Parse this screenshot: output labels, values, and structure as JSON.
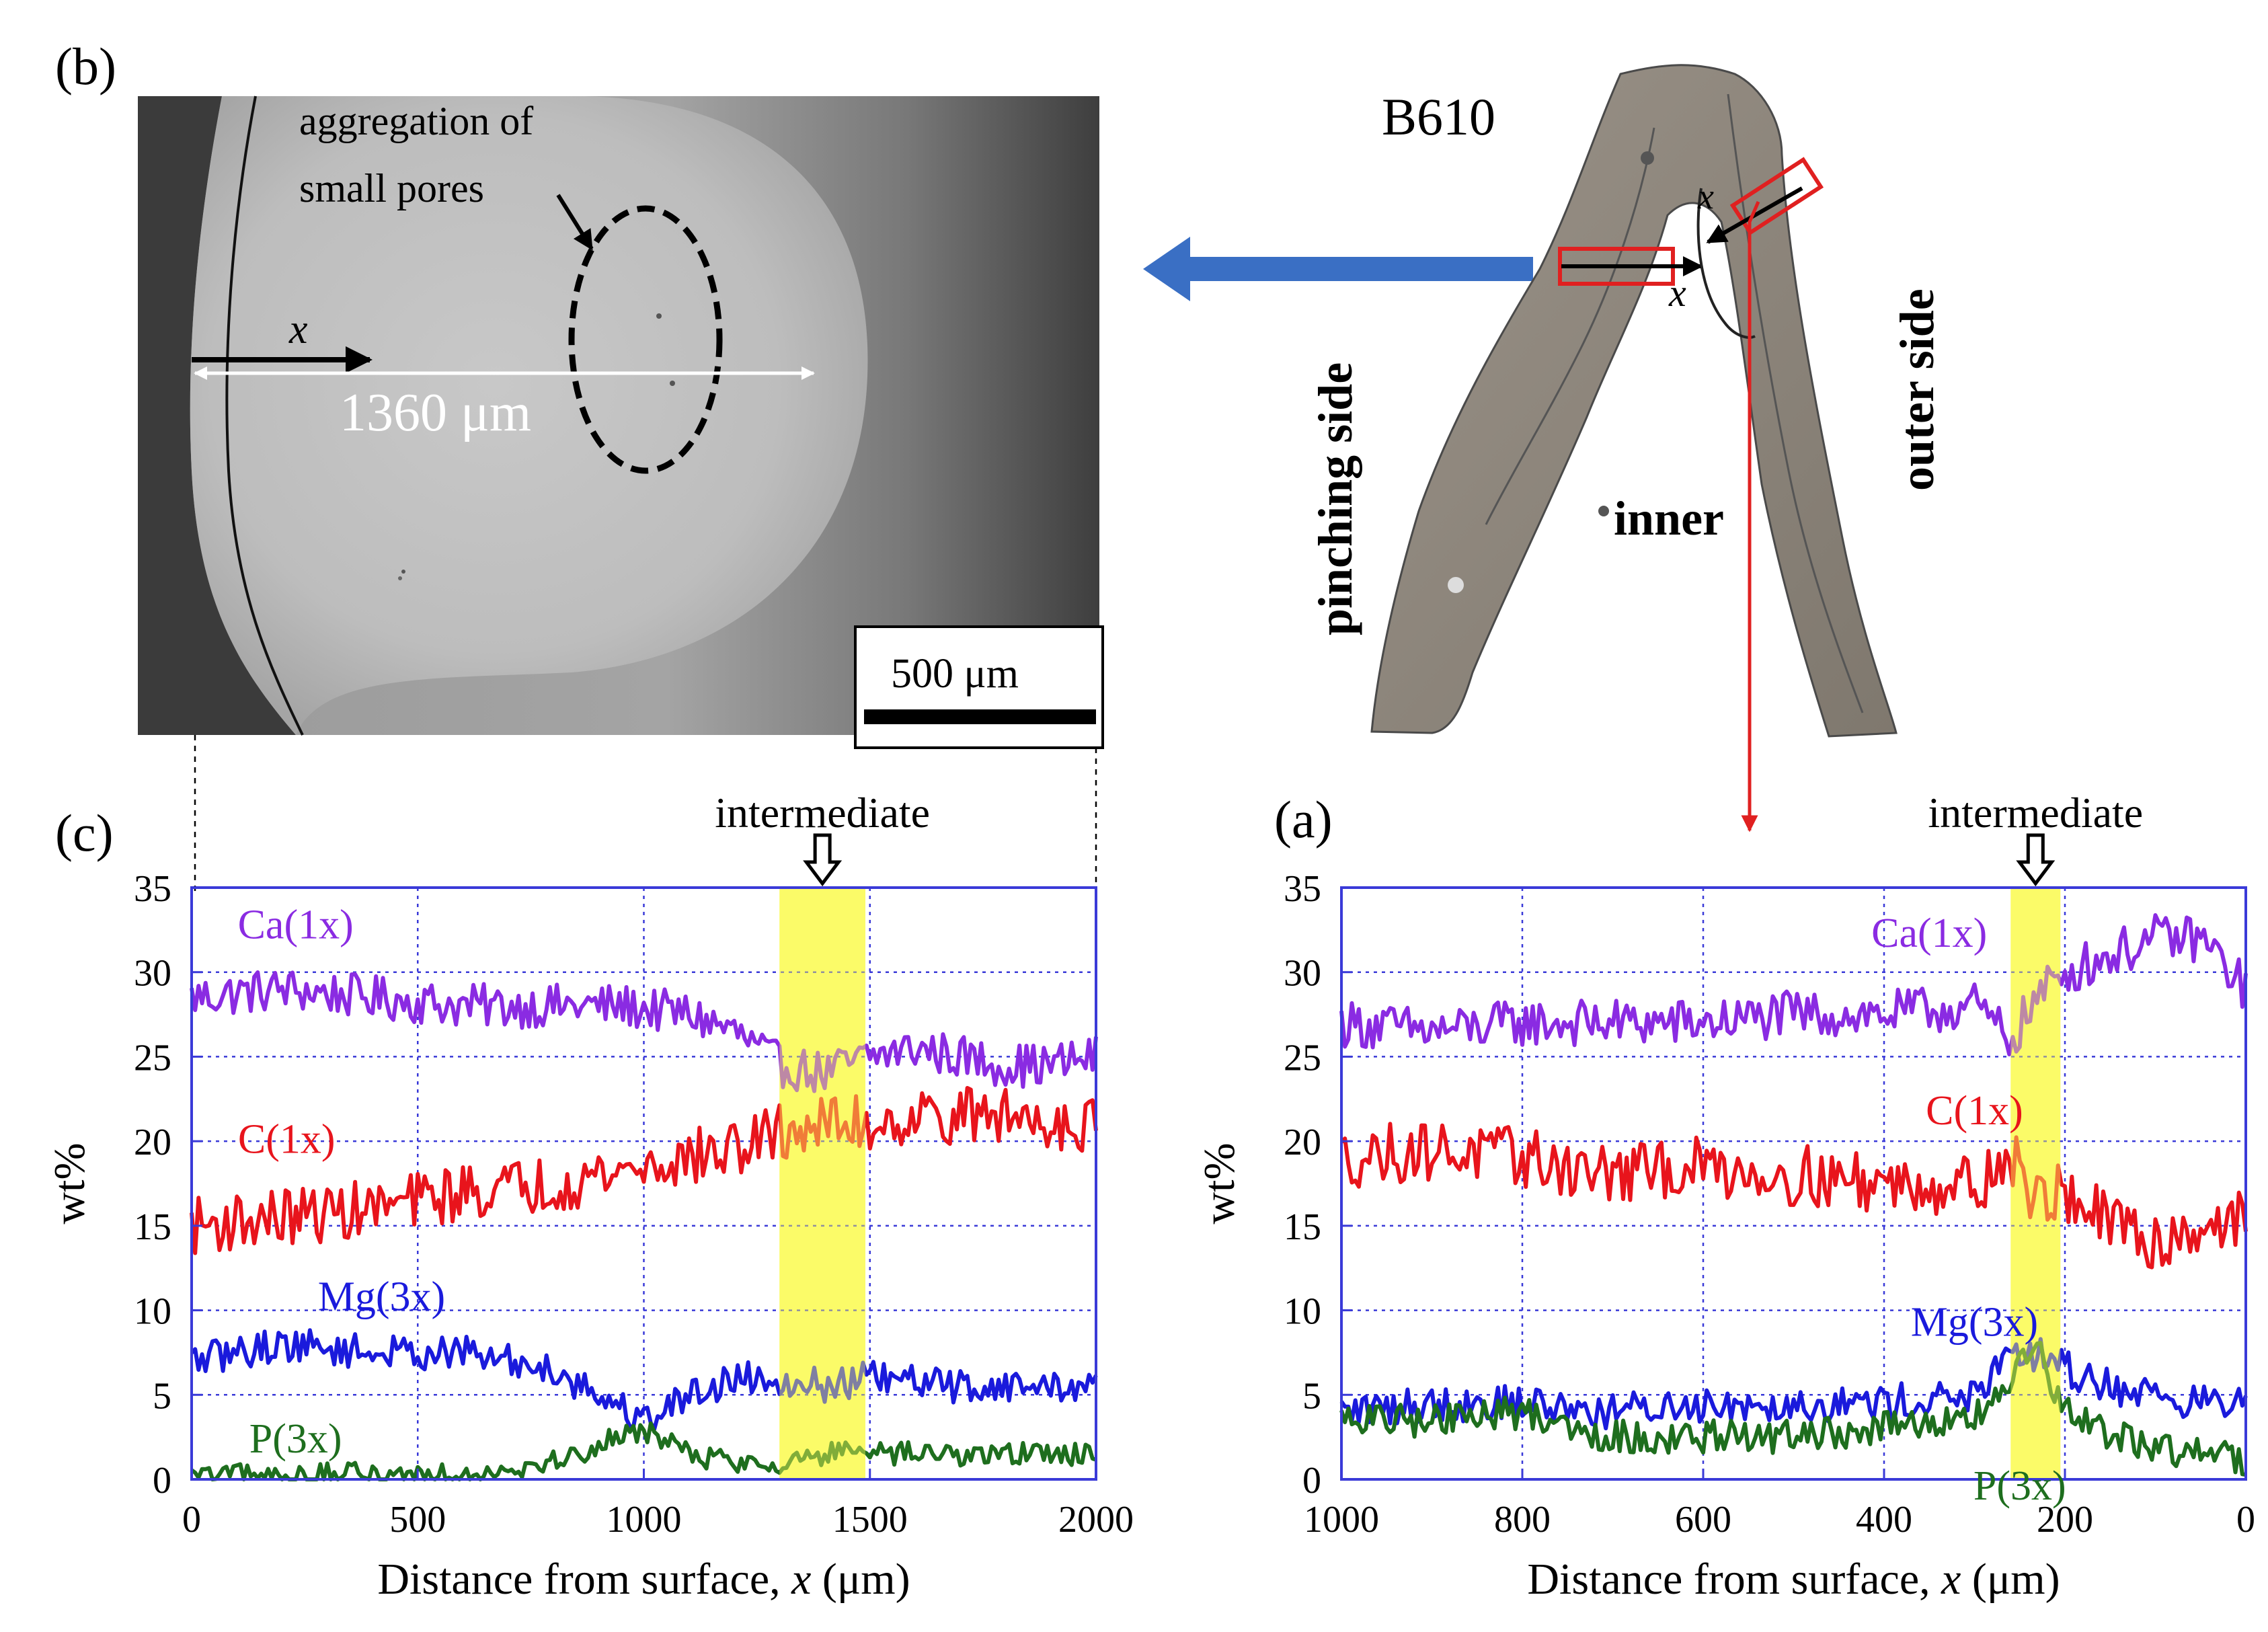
{
  "panel_labels": {
    "a": "(a)",
    "b": "(b)",
    "c": "(c)"
  },
  "micrograph": {
    "aggregation_label_line1": "aggregation of",
    "aggregation_label_line2": "small pores",
    "x_label": "x",
    "width_label": "1360 μm",
    "scalebar_label": "500 μm"
  },
  "specimen": {
    "name": "B610",
    "pinching_label": "pinching side",
    "outer_label": "outer side",
    "inner_label": "inner",
    "x_label_1": "x",
    "x_label_2": "x"
  },
  "colors": {
    "ca": "#8a2be2",
    "c": "#e8141c",
    "mg": "#1a1adc",
    "p": "#1e6e1e",
    "highlight": "#fbfb5a",
    "grid": "#3a3ad8",
    "axis": "#3a3ad8",
    "arrow_blue": "#3a6fc4",
    "arrow_red": "#e02020"
  },
  "chart_data": [
    {
      "panel": "(c)",
      "type": "line",
      "highlight_label": "intermediate",
      "highlight_range": [
        1300,
        1490
      ],
      "xlabel_prefix": "Distance from surface, ",
      "xlabel_var": "x",
      "xlabel_suffix": " (μm)",
      "ylabel": "wt%",
      "xlim": [
        0,
        2000
      ],
      "ylim": [
        0,
        35
      ],
      "x_ticks": [
        0,
        500,
        1000,
        1500,
        2000
      ],
      "y_ticks": [
        0,
        5,
        10,
        15,
        20,
        25,
        30,
        35
      ],
      "x_tick_labels": [
        "0",
        "500",
        "1000",
        "1500",
        "2000"
      ],
      "y_tick_labels": [
        "0",
        "5",
        "10",
        "15",
        "20",
        "25",
        "30",
        "35"
      ],
      "series": [
        {
          "name": "Ca(1x)",
          "key": "ca",
          "x": [
            0,
            200,
            400,
            600,
            800,
            950,
            1100,
            1200,
            1300,
            1400,
            1500,
            1600,
            1700,
            1800,
            1900,
            2000
          ],
          "values": [
            28.5,
            29,
            28.5,
            28,
            28,
            28,
            27.5,
            26.5,
            24.5,
            24,
            25,
            25.5,
            25,
            24.5,
            24.5,
            25
          ],
          "noise": 1.3
        },
        {
          "name": "C(1x)",
          "key": "c",
          "x": [
            0,
            200,
            400,
            600,
            800,
            1000,
            1100,
            1200,
            1300,
            1400,
            1500,
            1600,
            1800,
            2000
          ],
          "values": [
            15,
            15.5,
            16,
            17,
            17.5,
            18.5,
            19,
            19.5,
            20.5,
            21,
            21,
            21.5,
            21.5,
            21
          ],
          "noise": 1.7
        },
        {
          "name": "Mg(3x)",
          "key": "mg",
          "x": [
            0,
            200,
            400,
            600,
            800,
            900,
            1000,
            1100,
            1200,
            1300,
            1400,
            1500,
            1700,
            2000
          ],
          "values": [
            7,
            8,
            7.5,
            7.5,
            6.5,
            5,
            3.5,
            5,
            6,
            6,
            5.5,
            6,
            5.5,
            5.5
          ],
          "noise": 1.0
        },
        {
          "name": "P(3x)",
          "key": "p",
          "x": [
            0,
            200,
            400,
            600,
            800,
            900,
            1000,
            1100,
            1200,
            1300,
            1400,
            1500,
            1700,
            2000
          ],
          "values": [
            0.2,
            0.2,
            0.3,
            0.4,
            1,
            2,
            3,
            1.5,
            1,
            1,
            1.5,
            1.5,
            1.5,
            1.5
          ],
          "noise": 0.7
        }
      ],
      "series_labels": [
        {
          "text": "Ca(1x)",
          "key": "ca",
          "x": 230,
          "y": 32
        },
        {
          "text": "C(1x)",
          "key": "c",
          "x": 210,
          "y": 19.3
        },
        {
          "text": "Mg(3x)",
          "key": "mg",
          "x": 420,
          "y": 10
        },
        {
          "text": "P(3x)",
          "key": "p",
          "x": 230,
          "y": 1.6
        }
      ]
    },
    {
      "panel": "(a)",
      "type": "line",
      "highlight_label": "intermediate",
      "highlight_range": [
        260,
        205
      ],
      "xlabel_prefix": "Distance from surface, ",
      "xlabel_var": "x",
      "xlabel_suffix": " (μm)",
      "ylabel": "wt%",
      "xlim": [
        1000,
        0
      ],
      "ylim": [
        0,
        35
      ],
      "x_ticks": [
        1000,
        800,
        600,
        400,
        200,
        0
      ],
      "y_ticks": [
        0,
        5,
        10,
        15,
        20,
        25,
        30,
        35
      ],
      "x_tick_labels": [
        "1000",
        "800",
        "600",
        "400",
        "200",
        "0"
      ],
      "y_tick_labels": [
        "0",
        "5",
        "10",
        "15",
        "20",
        "25",
        "30",
        "35"
      ],
      "series": [
        {
          "name": "Ca(1x)",
          "key": "ca",
          "x": [
            1000,
            900,
            800,
            700,
            600,
            500,
            400,
            300,
            260,
            230,
            200,
            150,
            100,
            50,
            0
          ],
          "values": [
            27,
            26.5,
            27,
            27,
            27,
            27.5,
            27.5,
            28,
            26,
            28.5,
            30,
            31,
            32,
            32,
            29
          ],
          "noise": 1.4
        },
        {
          "name": "C(1x)",
          "key": "c",
          "x": [
            1000,
            900,
            800,
            700,
            600,
            500,
            400,
            300,
            260,
            230,
            200,
            150,
            100,
            50,
            0
          ],
          "values": [
            19,
            19.5,
            19,
            18,
            18.5,
            18,
            17.5,
            17.5,
            19,
            16.5,
            17,
            15,
            14,
            15,
            15.5
          ],
          "noise": 1.8
        },
        {
          "name": "Mg(3x)",
          "key": "mg",
          "x": [
            1000,
            900,
            800,
            700,
            600,
            500,
            400,
            300,
            260,
            230,
            200,
            150,
            100,
            50,
            0
          ],
          "values": [
            4,
            4.5,
            4.5,
            4,
            4.5,
            4.5,
            4.5,
            5,
            7,
            7.5,
            6.5,
            5.5,
            5,
            4.5,
            4.5
          ],
          "noise": 1.1
        },
        {
          "name": "P(3x)",
          "key": "p",
          "x": [
            1000,
            900,
            800,
            700,
            600,
            500,
            400,
            300,
            260,
            230,
            200,
            150,
            100,
            50,
            0
          ],
          "values": [
            3.5,
            3.5,
            4,
            2.5,
            2.5,
            2.5,
            3,
            3.5,
            6,
            7.5,
            4,
            2.5,
            2,
            1.5,
            1
          ],
          "noise": 1.0
        }
      ],
      "series_labels": [
        {
          "text": "Ca(1x)",
          "key": "ca",
          "x": 350,
          "y": 31.5
        },
        {
          "text": "C(1x)",
          "key": "c",
          "x": 300,
          "y": 21
        },
        {
          "text": "Mg(3x)",
          "key": "mg",
          "x": 300,
          "y": 8.5
        },
        {
          "text": "P(3x)",
          "key": "p",
          "x": 250,
          "y": -1.2
        }
      ]
    }
  ]
}
